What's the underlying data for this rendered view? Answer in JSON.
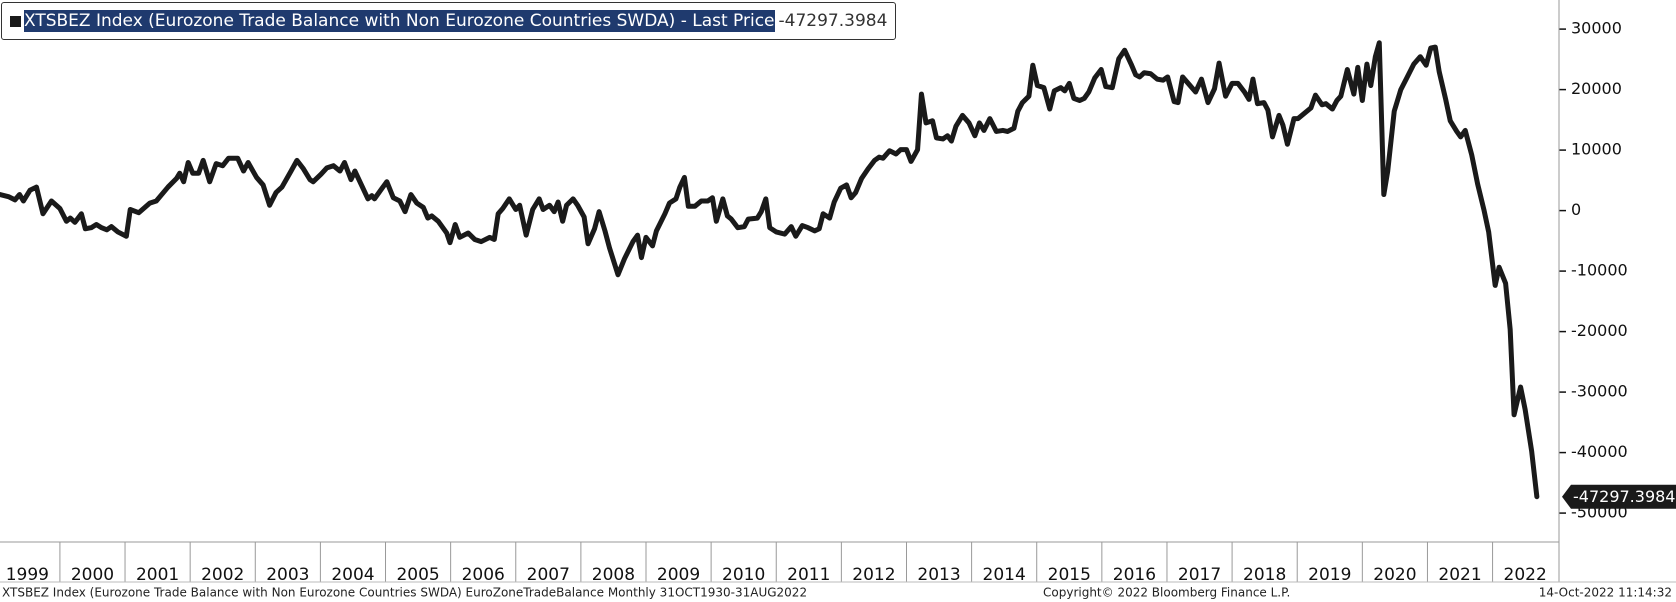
{
  "chart_data": {
    "type": "line",
    "x": [
      1999.08,
      1999.21,
      1999.31,
      1999.38,
      1999.44,
      1999.54,
      1999.64,
      1999.74,
      1999.87,
      2000.0,
      2000.1,
      2000.16,
      2000.23,
      2000.33,
      2000.39,
      2000.48,
      2000.56,
      2000.64,
      2000.72,
      2000.79,
      2000.89,
      2001.02,
      2001.08,
      2001.21,
      2001.38,
      2001.48,
      2001.66,
      2001.79,
      2001.84,
      2001.9,
      2001.97,
      2002.04,
      2002.13,
      2002.2,
      2002.3,
      2002.4,
      2002.5,
      2002.59,
      2002.73,
      2002.82,
      2002.89,
      2003.02,
      2003.12,
      2003.22,
      2003.32,
      2003.41,
      2003.55,
      2003.64,
      2003.74,
      2003.84,
      2003.89,
      2004.01,
      2004.1,
      2004.2,
      2004.3,
      2004.37,
      2004.47,
      2004.53,
      2004.63,
      2004.73,
      2004.79,
      2004.83,
      2004.96,
      2005.02,
      2005.12,
      2005.22,
      2005.3,
      2005.39,
      2005.48,
      2005.58,
      2005.65,
      2005.71,
      2005.81,
      2005.94,
      2005.99,
      2006.07,
      2006.14,
      2006.27,
      2006.37,
      2006.47,
      2006.6,
      2006.67,
      2006.73,
      2006.8,
      2006.9,
      2007.0,
      2007.06,
      2007.16,
      2007.26,
      2007.36,
      2007.42,
      2007.52,
      2007.59,
      2007.65,
      2007.72,
      2007.78,
      2007.88,
      2007.95,
      2008.05,
      2008.11,
      2008.21,
      2008.28,
      2008.37,
      2008.44,
      2008.57,
      2008.67,
      2008.8,
      2008.87,
      2008.93,
      2009.0,
      2009.1,
      2009.16,
      2009.29,
      2009.36,
      2009.46,
      2009.52,
      2009.59,
      2009.65,
      2009.75,
      2009.85,
      2009.95,
      2010.02,
      2010.08,
      2010.18,
      2010.25,
      2010.31,
      2010.41,
      2010.51,
      2010.57,
      2010.71,
      2010.77,
      2010.84,
      2010.9,
      2011.0,
      2011.13,
      2011.23,
      2011.3,
      2011.4,
      2011.49,
      2011.59,
      2011.66,
      2011.72,
      2011.82,
      2011.89,
      2011.99,
      2012.08,
      2012.15,
      2012.22,
      2012.31,
      2012.41,
      2012.51,
      2012.58,
      2012.64,
      2012.74,
      2012.84,
      2012.91,
      2013.0,
      2013.07,
      2013.17,
      2013.23,
      2013.3,
      2013.4,
      2013.46,
      2013.56,
      2013.63,
      2013.69,
      2013.76,
      2013.86,
      2013.96,
      2014.05,
      2014.12,
      2014.19,
      2014.28,
      2014.38,
      2014.48,
      2014.55,
      2014.65,
      2014.71,
      2014.78,
      2014.88,
      2014.94,
      2015.01,
      2015.11,
      2015.2,
      2015.27,
      2015.37,
      2015.43,
      2015.5,
      2015.57,
      2015.66,
      2015.73,
      2015.8,
      2015.89,
      2015.99,
      2016.06,
      2016.16,
      2016.26,
      2016.35,
      2016.45,
      2016.52,
      2016.58,
      2016.65,
      2016.75,
      2016.85,
      2016.94,
      2017.01,
      2017.11,
      2017.17,
      2017.24,
      2017.34,
      2017.44,
      2017.53,
      2017.63,
      2017.73,
      2017.8,
      2017.9,
      2018.0,
      2018.09,
      2018.19,
      2018.26,
      2018.32,
      2018.39,
      2018.49,
      2018.55,
      2018.62,
      2018.72,
      2018.78,
      2018.85,
      2018.95,
      2019.01,
      2019.11,
      2019.21,
      2019.28,
      2019.38,
      2019.44,
      2019.54,
      2019.61,
      2019.67,
      2019.77,
      2019.87,
      2019.93,
      2020.0,
      2020.07,
      2020.13,
      2020.2,
      2020.26,
      2020.33,
      2020.39,
      2020.49,
      2020.59,
      2020.69,
      2020.79,
      2020.89,
      2020.98,
      2021.05,
      2021.12,
      2021.18,
      2021.28,
      2021.35,
      2021.45,
      2021.51,
      2021.58,
      2021.68,
      2021.77,
      2021.87,
      2021.94,
      2022.04,
      2022.1,
      2022.2,
      2022.27,
      2022.33,
      2022.43,
      2022.5,
      2022.6,
      2022.68
    ],
    "series": [
      {
        "name": "XTSBEZ Index (Eurozone Trade Balance with Non Eurozone Countries SWDA) - Last Price",
        "color": "#1a1a1a",
        "values": [
          2650,
          2300,
          1770,
          2650,
          1590,
          3360,
          3890,
          -530,
          1590,
          350,
          -1770,
          -1240,
          -1940,
          -530,
          -3000,
          -2830,
          -2300,
          -2830,
          -3180,
          -2650,
          -3530,
          -4240,
          180,
          -350,
          1240,
          1590,
          3890,
          5300,
          6180,
          4770,
          7950,
          6180,
          6180,
          8300,
          4770,
          7770,
          7420,
          8660,
          8660,
          6540,
          7950,
          5480,
          4240,
          880,
          3000,
          3890,
          6540,
          8300,
          6890,
          5120,
          4770,
          6010,
          7070,
          7420,
          6540,
          7950,
          5120,
          6540,
          4240,
          1940,
          2470,
          1940,
          3890,
          4770,
          2120,
          1590,
          -180,
          2650,
          1240,
          530,
          -1240,
          -880,
          -1770,
          -3710,
          -5300,
          -2300,
          -4420,
          -3710,
          -4770,
          -5120,
          -4420,
          -4770,
          -530,
          350,
          1940,
          180,
          880,
          -4060,
          180,
          1940,
          180,
          880,
          -180,
          1410,
          -1770,
          880,
          1940,
          880,
          -1060,
          -5480,
          -3000,
          -180,
          -3360,
          -6180,
          -10600,
          -7950,
          -5120,
          -4060,
          -7770,
          -4420,
          -5830,
          -3360,
          -530,
          1240,
          1940,
          3890,
          5480,
          710,
          710,
          1590,
          1590,
          2120,
          -1770,
          1940,
          -880,
          -1410,
          -2830,
          -2650,
          -1410,
          -1240,
          -180,
          1940,
          -2830,
          -3530,
          -3890,
          -2650,
          -4240,
          -2470,
          -2830,
          -3360,
          -3000,
          -530,
          -1240,
          1410,
          3710,
          4240,
          2120,
          3000,
          5300,
          6890,
          8300,
          8830,
          8660,
          9890,
          9360,
          10070,
          10070,
          8130,
          10070,
          19260,
          14490,
          14840,
          12020,
          11840,
          12370,
          11490,
          13960,
          15730,
          14490,
          12370,
          14490,
          13250,
          15200,
          13080,
          13250,
          13080,
          13610,
          16430,
          17850,
          18910,
          24030,
          20670,
          20320,
          16790,
          19790,
          20320,
          19790,
          21030,
          18550,
          18200,
          18550,
          19610,
          21910,
          23320,
          20500,
          20320,
          25090,
          26510,
          24210,
          22440,
          22090,
          22790,
          22620,
          21730,
          21560,
          22090,
          18020,
          17850,
          22090,
          20850,
          19610,
          21730,
          17850,
          20140,
          24380,
          18910,
          21030,
          21030,
          19610,
          18380,
          21730,
          17670,
          17850,
          16610,
          12190,
          15730,
          14140,
          10960,
          15200,
          15200,
          16080,
          16960,
          19080,
          17490,
          17670,
          16790,
          18200,
          18910,
          23320,
          19260,
          23680,
          18200,
          24210,
          20670,
          25440,
          27740,
          2650,
          6540,
          16430,
          19970,
          22090,
          24210,
          25440,
          24030,
          26860,
          27030,
          22970,
          18380,
          14840,
          13080,
          12190,
          13250,
          9190,
          4420,
          0,
          -3530,
          -12370,
          -9360,
          -12020,
          -19610,
          -33750,
          -29160,
          -32870,
          -39760,
          -47297.3984
        ]
      }
    ],
    "xlim": [
      1999.08,
      2023.02
    ],
    "xticks": [
      1999,
      2000,
      2001,
      2002,
      2003,
      2004,
      2005,
      2006,
      2007,
      2008,
      2009,
      2010,
      2011,
      2012,
      2013,
      2014,
      2015,
      2016,
      2017,
      2018,
      2019,
      2020,
      2021,
      2022
    ],
    "ylim": [
      -54780,
      34810
    ],
    "yticks": [
      -50000,
      -40000,
      -30000,
      -20000,
      -10000,
      0,
      10000,
      20000,
      30000
    ],
    "legend": "top-left",
    "footer": {
      "left": "XTSBEZ Index (Eurozone Trade Balance with Non Eurozone Countries SWDA) EuroZoneTradeBalance  Monthly 31OCT1930-31AUG2022",
      "center": "Copyright© 2022 Bloomberg Finance L.P.",
      "right": "14-Oct-2022 11:14:32"
    }
  }
}
